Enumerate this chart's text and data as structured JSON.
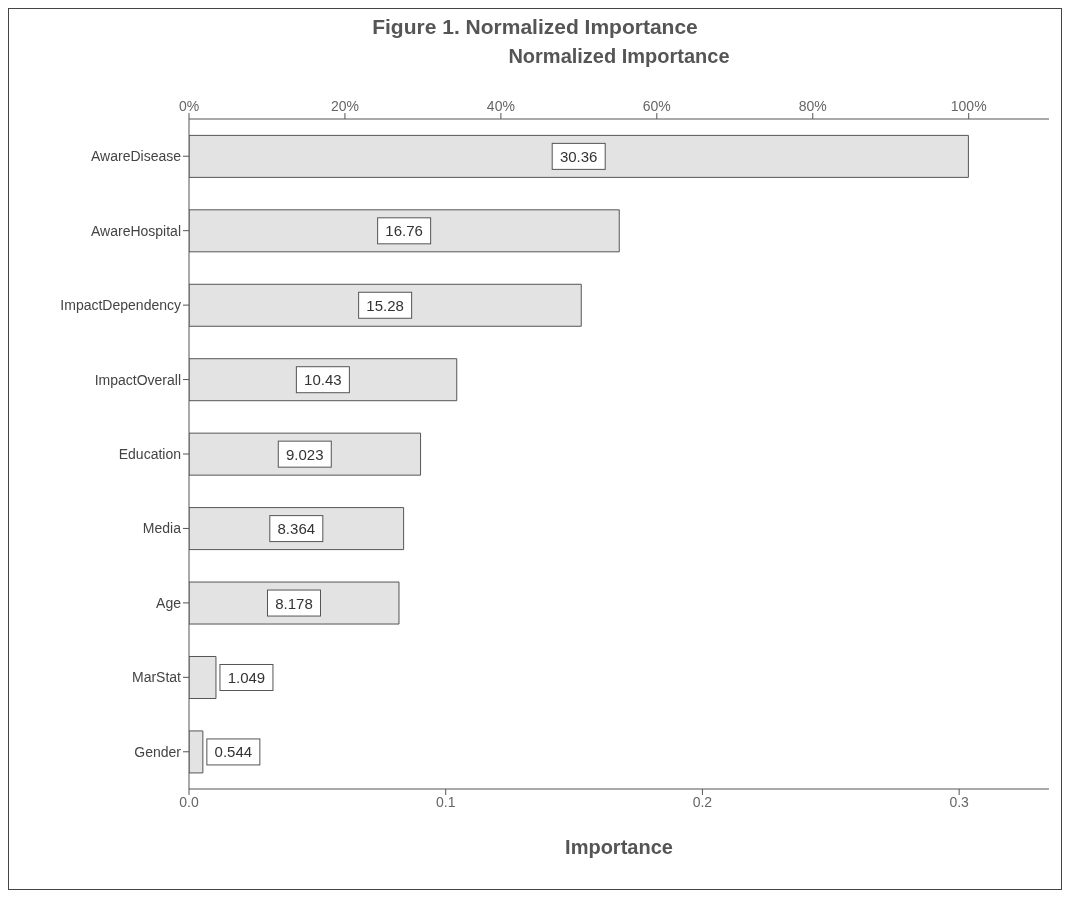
{
  "chart_data": {
    "type": "bar",
    "orientation": "horizontal",
    "title": "Figure 1. Normalized Importance",
    "xlabel": "Importance",
    "x2label": "Normalized Importance",
    "categories": [
      "AwareDisease",
      "AwareHospital",
      "ImpactDependency",
      "ImpactOverall",
      "Education",
      "Media",
      "Age",
      "MarStat",
      "Gender"
    ],
    "values": [
      0.3036,
      0.1676,
      0.1528,
      0.1043,
      0.0902,
      0.0836,
      0.0818,
      0.0105,
      0.0054
    ],
    "annotations": [
      "30.36",
      "16.76",
      "15.28",
      "10.43",
      "9.023",
      "8.364",
      "8.178",
      "1.049",
      "0.544"
    ],
    "color": "#e3e3e3",
    "xlim": [
      0,
      0.335
    ],
    "xticks": [
      {
        "value": 0,
        "label": "0.0"
      },
      0.1,
      0.2,
      0.3
    ],
    "x2lim": [
      0,
      110.3
    ],
    "x2ticks": [
      {
        "value": 0,
        "label": "0%"
      },
      {
        "value": 20,
        "label": "20%"
      },
      {
        "value": 40,
        "label": "40%"
      },
      {
        "value": 60,
        "label": "60%"
      },
      {
        "value": 80,
        "label": "80%"
      },
      {
        "value": 100,
        "label": "100%"
      }
    ],
    "grid": false,
    "legend": false
  }
}
